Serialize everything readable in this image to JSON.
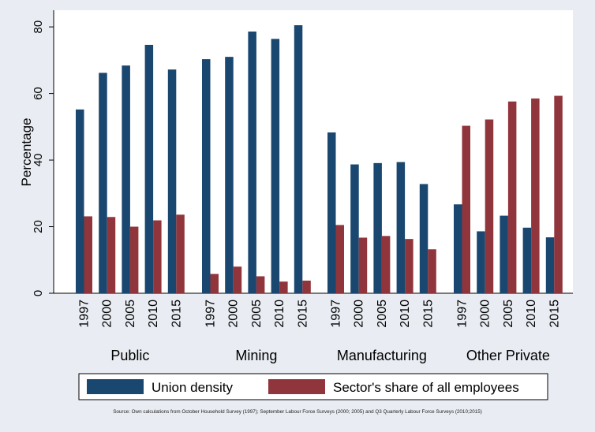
{
  "chart_data": {
    "type": "bar",
    "ylabel": "Percentage",
    "ylim": [
      0,
      85
    ],
    "yticks": [
      0,
      20,
      40,
      60,
      80
    ],
    "grid": false,
    "legend_position": "bottom",
    "groups": [
      {
        "label": "Public",
        "years": [
          "1997",
          "2000",
          "2005",
          "2010",
          "2015"
        ]
      },
      {
        "label": "Mining",
        "years": [
          "1997",
          "2000",
          "2005",
          "2010",
          "2015"
        ]
      },
      {
        "label": "Manufacturing",
        "years": [
          "1997",
          "2000",
          "2005",
          "2010",
          "2015"
        ]
      },
      {
        "label": "Other Private",
        "years": [
          "1997",
          "2000",
          "2005",
          "2010",
          "2015"
        ]
      }
    ],
    "series": [
      {
        "name": "Union density",
        "color": "#1a476f",
        "values": [
          [
            55.2,
            66.2,
            68.4,
            74.6,
            67.2
          ],
          [
            70.3,
            71.0,
            78.6,
            76.4,
            80.5
          ],
          [
            48.3,
            38.7,
            39.1,
            39.4,
            32.8
          ],
          [
            26.7,
            18.6,
            23.3,
            19.7,
            16.8
          ]
        ]
      },
      {
        "name": "Sector's share of all employees",
        "color": "#90353b",
        "values": [
          [
            23.1,
            22.9,
            20.0,
            21.9,
            23.6
          ],
          [
            5.8,
            8.0,
            5.1,
            3.5,
            3.8
          ],
          [
            20.5,
            16.7,
            17.2,
            16.3,
            13.2
          ],
          [
            50.3,
            52.2,
            57.6,
            58.5,
            59.3
          ]
        ]
      }
    ]
  },
  "source_note": "Source: Own calculations from October Household Survey (1997); September Labour Force Surveys (2000; 2005) and Q3 Quarterly Labour Force Surveys (2010;2015)"
}
